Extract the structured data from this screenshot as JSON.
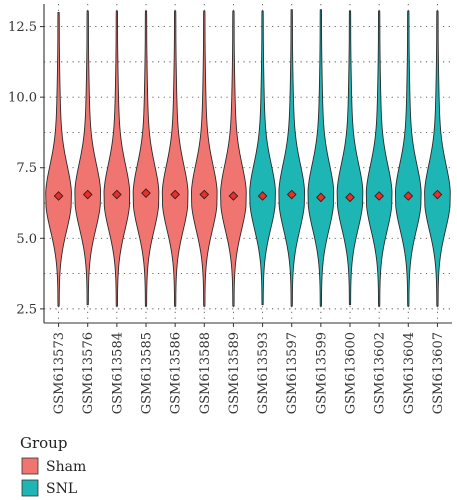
{
  "chart_data": {
    "type": "violin",
    "categories": [
      "GSM613573",
      "GSM613576",
      "GSM613584",
      "GSM613585",
      "GSM613586",
      "GSM613588",
      "GSM613589",
      "GSM613593",
      "GSM613597",
      "GSM613599",
      "GSM613600",
      "GSM613602",
      "GSM613604",
      "GSM613607"
    ],
    "groups": [
      "Sham",
      "Sham",
      "Sham",
      "Sham",
      "Sham",
      "Sham",
      "Sham",
      "SNL",
      "SNL",
      "SNL",
      "SNL",
      "SNL",
      "SNL",
      "SNL"
    ],
    "means": [
      6.5,
      6.55,
      6.55,
      6.6,
      6.55,
      6.55,
      6.5,
      6.5,
      6.55,
      6.45,
      6.45,
      6.5,
      6.5,
      6.55
    ],
    "min": [
      2.6,
      2.65,
      2.6,
      2.6,
      2.6,
      2.6,
      2.6,
      2.65,
      2.6,
      2.6,
      2.65,
      2.6,
      2.6,
      2.6
    ],
    "max": [
      13.0,
      13.05,
      13.05,
      13.05,
      13.05,
      13.05,
      13.05,
      13.05,
      13.1,
      13.1,
      13.05,
      13.05,
      13.05,
      13.05
    ],
    "ylim": [
      2.0,
      13.3
    ],
    "yticks": [
      "2.5",
      "5.0",
      "7.5",
      "10.0",
      "12.5"
    ],
    "ytick_values": [
      2.5,
      5.0,
      7.5,
      10.0,
      12.5
    ],
    "grid": true,
    "legend": {
      "title": "Group",
      "position": "bottom-left",
      "items": [
        {
          "label": "Sham",
          "color": "#F07470"
        },
        {
          "label": "SNL",
          "color": "#1EB5B5"
        }
      ]
    },
    "colors": {
      "Sham": "#F07470",
      "SNL": "#1EB5B5",
      "mean_marker": "#E8302A",
      "outline": "#2a2a2a"
    }
  }
}
